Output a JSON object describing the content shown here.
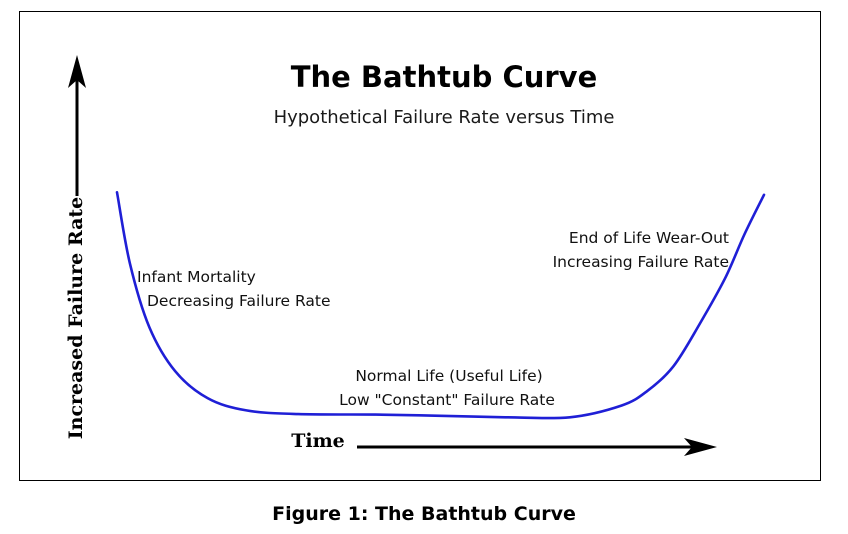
{
  "chart_data": {
    "type": "line",
    "title": "The Bathtub Curve",
    "subtitle": "Hypothetical Failure Rate versus Time",
    "xlabel": "Time",
    "ylabel": "Increased Failure Rate",
    "grid": false,
    "legend": "none",
    "series_color": "#1f1fd6",
    "x": [
      0,
      0.02,
      0.05,
      0.09,
      0.14,
      0.2,
      0.28,
      0.4,
      0.5,
      0.6,
      0.7,
      0.78,
      0.82,
      0.86,
      0.9,
      0.94,
      0.97,
      1.0
    ],
    "y": [
      0.97,
      0.68,
      0.42,
      0.24,
      0.13,
      0.08,
      0.065,
      0.063,
      0.058,
      0.052,
      0.052,
      0.1,
      0.16,
      0.26,
      0.43,
      0.62,
      0.8,
      0.96
    ],
    "annotations": [
      {
        "lines": [
          "Infant Mortality",
          "Decreasing Failure Rate"
        ]
      },
      {
        "lines": [
          "Normal Life (Useful Life)",
          "Low \"Constant\" Failure Rate"
        ]
      },
      {
        "lines": [
          "End of Life Wear-Out",
          "Increasing Failure Rate"
        ]
      }
    ]
  },
  "caption": "Figure 1: The Bathtub Curve"
}
